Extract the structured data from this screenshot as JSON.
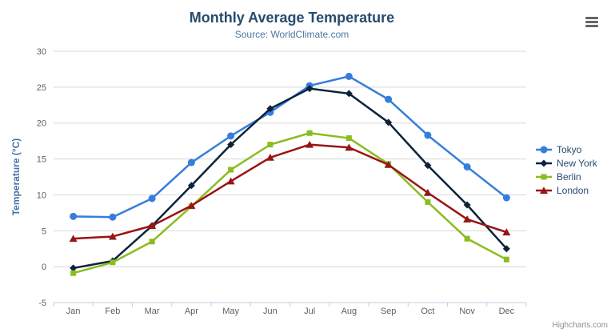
{
  "chart_data": {
    "type": "line",
    "title": "Monthly Average Temperature",
    "subtitle": "Source: WorldClimate.com",
    "categories": [
      "Jan",
      "Feb",
      "Mar",
      "Apr",
      "May",
      "Jun",
      "Jul",
      "Aug",
      "Sep",
      "Oct",
      "Nov",
      "Dec"
    ],
    "series": [
      {
        "name": "Tokyo",
        "color": "#377ddc",
        "marker": "circle",
        "values": [
          7.0,
          6.9,
          9.5,
          14.5,
          18.2,
          21.5,
          25.2,
          26.5,
          23.3,
          18.3,
          13.9,
          9.6
        ]
      },
      {
        "name": "New York",
        "color": "#0d233a",
        "marker": "diamond",
        "values": [
          -0.2,
          0.8,
          5.7,
          11.3,
          17.0,
          22.0,
          24.8,
          24.1,
          20.1,
          14.1,
          8.6,
          2.5
        ]
      },
      {
        "name": "Berlin",
        "color": "#8bbc21",
        "marker": "square",
        "values": [
          -0.9,
          0.6,
          3.5,
          8.4,
          13.5,
          17.0,
          18.6,
          17.9,
          14.3,
          9.0,
          3.9,
          1.0
        ]
      },
      {
        "name": "London",
        "color": "#991414",
        "marker": "triangle",
        "values": [
          3.9,
          4.2,
          5.7,
          8.5,
          11.9,
          15.2,
          17.0,
          16.6,
          14.2,
          10.3,
          6.6,
          4.8
        ]
      }
    ],
    "xlabel": "",
    "ylabel": "Temperature (°C)",
    "ylim": [
      -5,
      30
    ],
    "yticks": [
      -5,
      0,
      5,
      10,
      15,
      20,
      25,
      30
    ],
    "grid": true,
    "legend_position": "right",
    "colors": {
      "grid_line": "#d8d8d8",
      "axis_line": "#c0d0e0",
      "axis_label": "#606060",
      "axis_title": "#4572a7",
      "title_text": "#274b6d",
      "subtitle_text": "#4d759e",
      "legend_text": "#274b6d"
    }
  },
  "export_menu": {
    "icon": "hamburger-icon"
  },
  "credits": {
    "label": "Highcharts.com"
  }
}
